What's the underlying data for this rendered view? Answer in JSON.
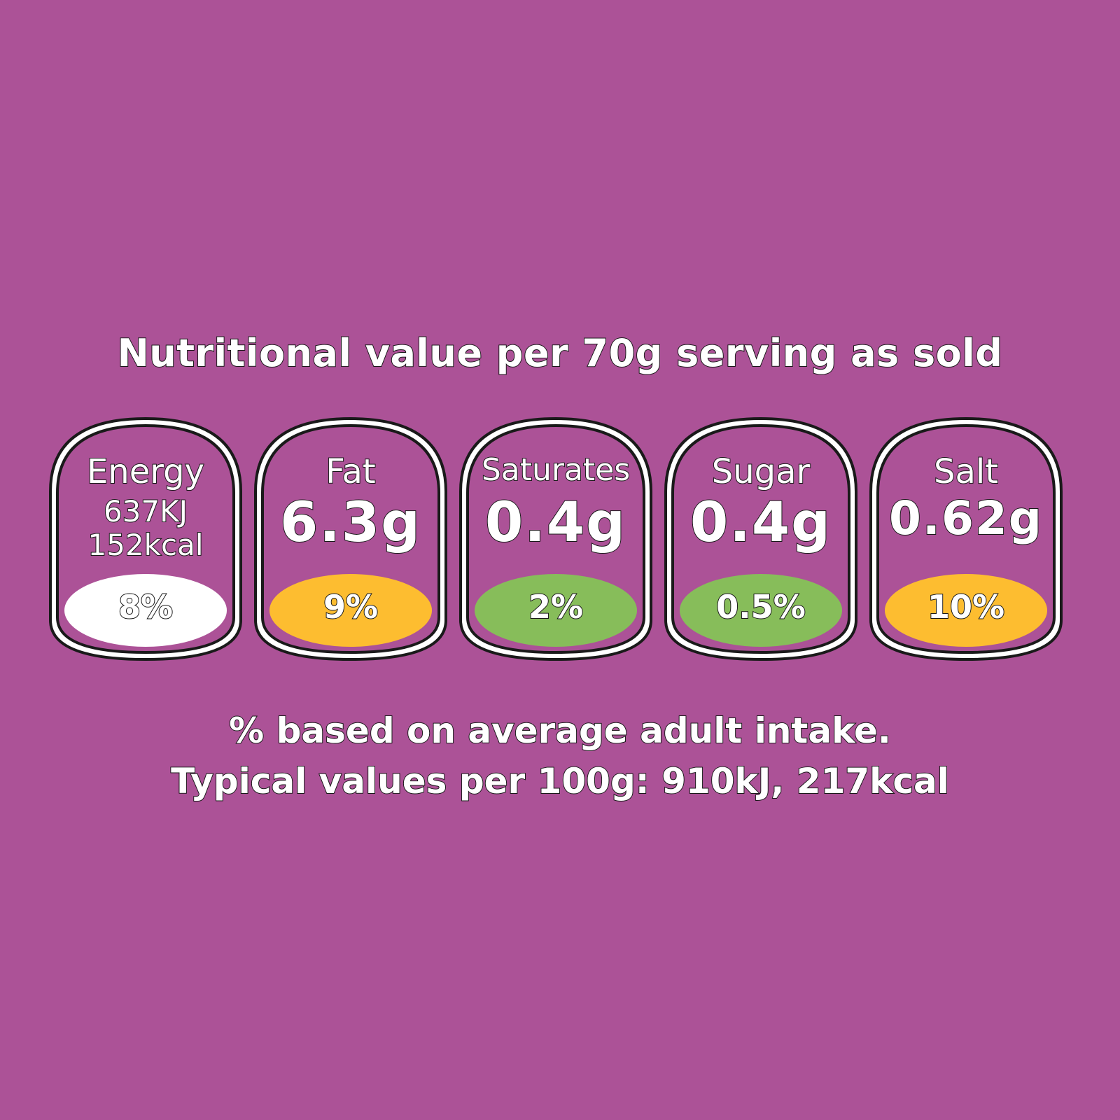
{
  "colors": {
    "background": "#ac5297",
    "outline": "#1a1a1a",
    "white": "#ffffff",
    "amber": "#fdbd30",
    "green": "#87bd5a"
  },
  "label": {
    "title": "Nutritional value per 70g serving as sold",
    "badges": [
      {
        "name": "Energy",
        "value_kj": "637KJ",
        "value_kcal": "152kcal",
        "percent": "8%",
        "rating_color": "#ffffff"
      },
      {
        "name": "Fat",
        "value": "6.3g",
        "percent": "9%",
        "rating_color": "#fdbd30"
      },
      {
        "name": "Saturates",
        "value": "0.4g",
        "percent": "2%",
        "rating_color": "#87bd5a"
      },
      {
        "name": "Sugar",
        "value": "0.4g",
        "percent": "0.5%",
        "rating_color": "#87bd5a"
      },
      {
        "name": "Salt",
        "value": "0.62g",
        "percent": "10%",
        "rating_color": "#fdbd30"
      }
    ],
    "footnote_line1": "% based on average adult intake.",
    "footnote_line2": "Typical values per 100g: 910kJ, 217kcal"
  }
}
